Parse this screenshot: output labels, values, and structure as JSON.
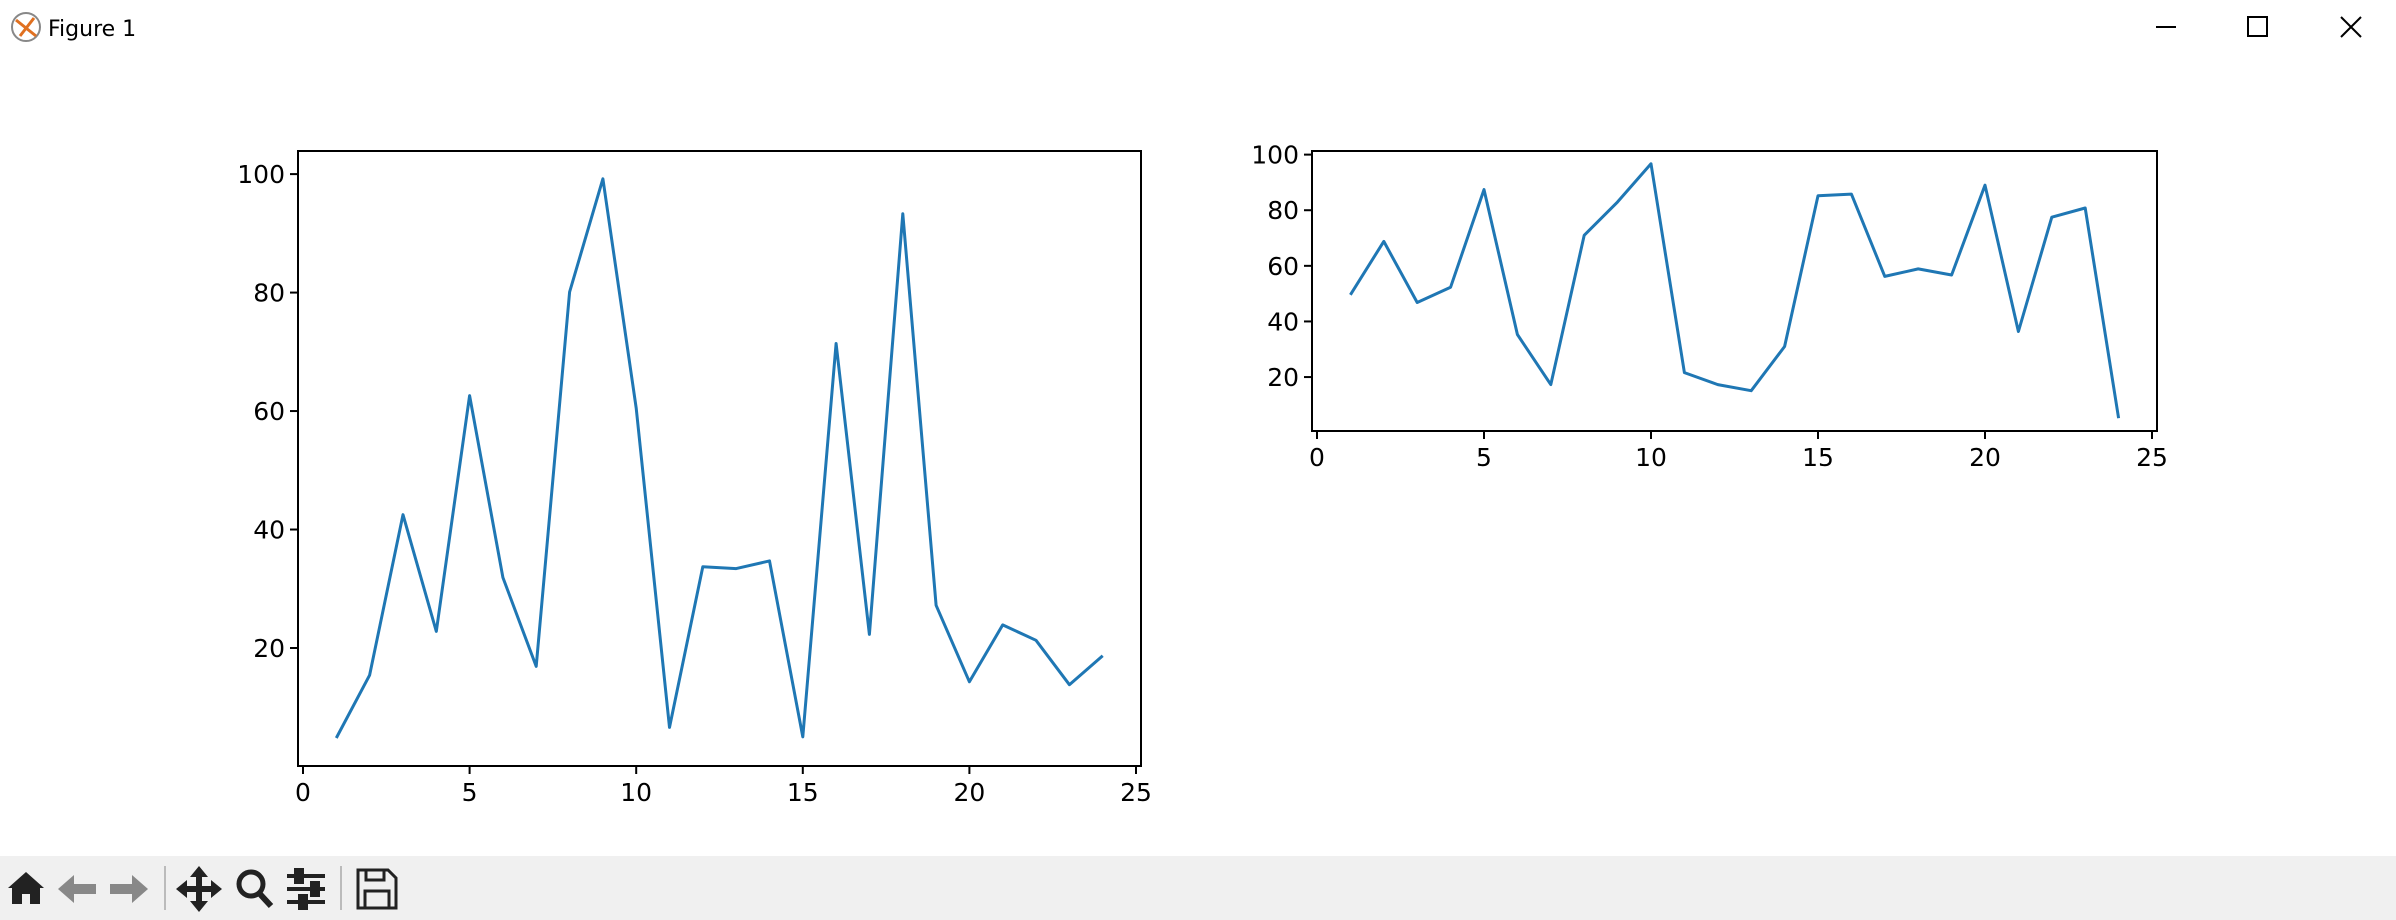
{
  "window": {
    "title": "Figure 1"
  },
  "chart_data": [
    {
      "type": "line",
      "color": "#1f77b4",
      "x": [
        1,
        2,
        3,
        4,
        5,
        6,
        7,
        8,
        9,
        10,
        11,
        12,
        13,
        14,
        15,
        16,
        17,
        18,
        19,
        20,
        21,
        22,
        23,
        24
      ],
      "values": [
        4.8,
        15.4,
        42.5,
        22.8,
        62.6,
        31.9,
        16.9,
        80.1,
        99.2,
        60.5,
        6.6,
        33.7,
        33.4,
        34.7,
        5.0,
        71.4,
        22.3,
        93.3,
        27.2,
        14.3,
        23.9,
        21.3,
        13.8,
        18.7
      ],
      "xlim": [
        -0.15,
        25.15
      ],
      "ylim": [
        0.08,
        103.9
      ],
      "xticks": [
        0,
        5,
        10,
        15,
        20,
        25
      ],
      "yticks": [
        20,
        40,
        60,
        80,
        100
      ]
    },
    {
      "type": "line",
      "color": "#1f77b4",
      "x": [
        1,
        2,
        3,
        4,
        5,
        6,
        7,
        8,
        9,
        10,
        11,
        12,
        13,
        14,
        15,
        16,
        17,
        18,
        19,
        20,
        21,
        22,
        23,
        24
      ],
      "values": [
        49.6,
        68.8,
        46.8,
        52.3,
        87.4,
        35.3,
        17.3,
        71.0,
        83.0,
        96.7,
        21.6,
        17.3,
        15.1,
        31.0,
        85.2,
        85.8,
        56.2,
        58.9,
        56.7,
        89.0,
        36.4,
        77.5,
        80.8,
        5.2
      ],
      "xlim": [
        -0.15,
        25.15
      ],
      "ylim": [
        0.6,
        101.3
      ],
      "xticks": [
        0,
        5,
        10,
        15,
        20,
        25
      ],
      "yticks": [
        20,
        40,
        60,
        80,
        100
      ]
    }
  ]
}
